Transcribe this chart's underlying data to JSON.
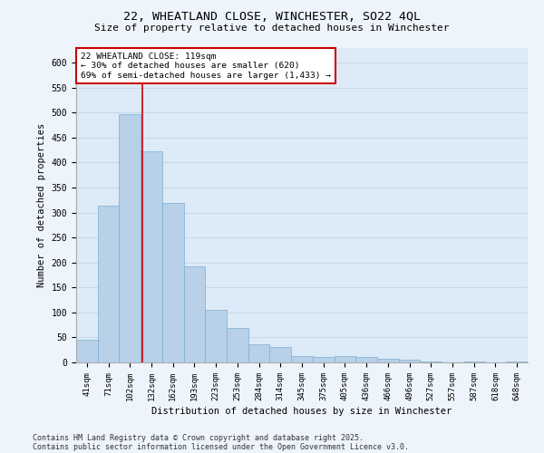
{
  "title_line1": "22, WHEATLAND CLOSE, WINCHESTER, SO22 4QL",
  "title_line2": "Size of property relative to detached houses in Winchester",
  "xlabel": "Distribution of detached houses by size in Winchester",
  "ylabel": "Number of detached properties",
  "categories": [
    "41sqm",
    "71sqm",
    "102sqm",
    "132sqm",
    "162sqm",
    "193sqm",
    "223sqm",
    "253sqm",
    "284sqm",
    "314sqm",
    "345sqm",
    "375sqm",
    "405sqm",
    "436sqm",
    "466sqm",
    "496sqm",
    "527sqm",
    "557sqm",
    "587sqm",
    "618sqm",
    "648sqm"
  ],
  "values": [
    45,
    313,
    497,
    422,
    319,
    193,
    105,
    69,
    37,
    30,
    12,
    10,
    12,
    10,
    8,
    5,
    2,
    0,
    2,
    0,
    2
  ],
  "bar_color": "#b8d0e8",
  "bar_edge_color": "#7aafd4",
  "grid_color": "#c8d8e8",
  "background_color": "#ddeaf7",
  "fig_background": "#eef4fb",
  "annotation_text": "22 WHEATLAND CLOSE: 119sqm\n← 30% of detached houses are smaller (620)\n69% of semi-detached houses are larger (1,433) →",
  "annotation_box_color": "#ffffff",
  "annotation_edge_color": "#cc0000",
  "ylim": [
    0,
    630
  ],
  "yticks": [
    0,
    50,
    100,
    150,
    200,
    250,
    300,
    350,
    400,
    450,
    500,
    550,
    600
  ],
  "footer_line1": "Contains HM Land Registry data © Crown copyright and database right 2025.",
  "footer_line2": "Contains public sector information licensed under the Open Government Licence v3.0."
}
